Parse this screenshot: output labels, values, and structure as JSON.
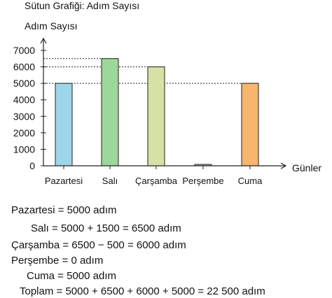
{
  "chart_data": {
    "type": "bar",
    "title": "Sütun Grafiği: Adım Sayısı",
    "ylabel": "Adım Sayısı",
    "xlabel": "Günler",
    "categories": [
      "Pazartesi",
      "Salı",
      "Çarşamba",
      "Perşembe",
      "Cuma"
    ],
    "values": [
      5000,
      6500,
      6000,
      0,
      5000
    ],
    "colors": [
      "#9fd5e8",
      "#9ed79a",
      "#d5e2a3",
      "#b8b8b8",
      "#f8b56d"
    ],
    "yticks": [
      0,
      1000,
      2000,
      3000,
      4000,
      5000,
      6000,
      7000
    ],
    "ylim": [
      0,
      7000
    ],
    "reference_lines": [
      6500,
      6000,
      5000
    ],
    "grid": false,
    "legend": "none"
  },
  "equations": [
    "Pazartesi = 5000 adım",
    "Salı = 5000 + 1500 = 6500 adım",
    "Çarşamba = 6500 − 500 = 6000 adım",
    "Perşembe = 0 adım",
    "Cuma = 5000 adım",
    "Toplam = 5000 + 6500 + 6000 + 5000 = 22 500 adım"
  ]
}
